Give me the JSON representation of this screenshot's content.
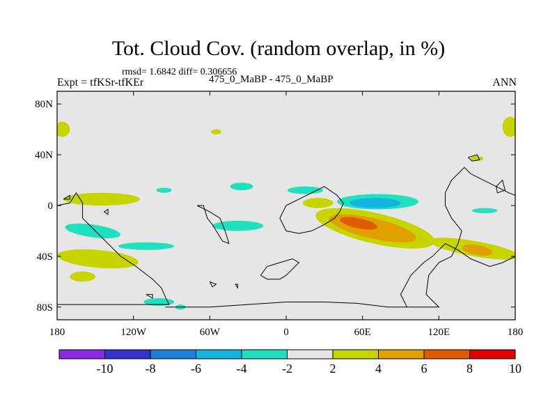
{
  "header": {
    "title": "Tot. Cloud Cov. (random overlap, in %)",
    "stats": "rmsd= 1.6842 diff= 0.306656",
    "expt": "Expt = tfKSr-tfKEr",
    "center_label": "475_0_MaBP - 475_0_MaBP",
    "season": "ANN"
  },
  "chart_data": {
    "type": "heatmap",
    "title": "Tot. Cloud Cov. (random overlap, in %)",
    "xlabel": "",
    "ylabel": "",
    "xlim": [
      -180,
      180
    ],
    "ylim": [
      -90,
      90
    ],
    "x_ticks": [
      {
        "value": -180,
        "label": "180"
      },
      {
        "value": -120,
        "label": "120W"
      },
      {
        "value": -60,
        "label": "60W"
      },
      {
        "value": 0,
        "label": "0"
      },
      {
        "value": 60,
        "label": "60E"
      },
      {
        "value": 120,
        "label": "120E"
      },
      {
        "value": 180,
        "label": "180"
      }
    ],
    "y_ticks": [
      {
        "value": 80,
        "label": "80N"
      },
      {
        "value": 40,
        "label": "40N"
      },
      {
        "value": 0,
        "label": "0"
      },
      {
        "value": -40,
        "label": "40S"
      },
      {
        "value": -80,
        "label": "80S"
      }
    ],
    "background_color": "#e6e6e6",
    "colorbar": {
      "colors": [
        "#8a2be2",
        "#3333cc",
        "#1e7fd8",
        "#12b4e0",
        "#20e0c0",
        "#e6e6e6",
        "#c8d400",
        "#e0a000",
        "#e05a00",
        "#e00000"
      ],
      "labels": [
        {
          "boundary": 1,
          "text": "-10"
        },
        {
          "boundary": 2,
          "text": "-8"
        },
        {
          "boundary": 3,
          "text": "-6"
        },
        {
          "boundary": 4,
          "text": "-4"
        },
        {
          "boundary": 5,
          "text": "-2"
        },
        {
          "boundary": 6,
          "text": "2"
        },
        {
          "boundary": 7,
          "text": "4"
        },
        {
          "boundary": 8,
          "text": "6"
        },
        {
          "boundary": 9,
          "text": "8"
        },
        {
          "boundary": 10,
          "text": "10"
        }
      ]
    },
    "regions": [
      {
        "name": "tropical-indian-ocean-max",
        "level": 4,
        "color": "#c8d400",
        "cx": 70,
        "cy": -18,
        "rx": 48,
        "ry": 12,
        "rot": 13
      },
      {
        "name": "tropical-indian-ocean-mid",
        "level": 6,
        "color": "#e0a000",
        "cx": 68,
        "cy": -18,
        "rx": 35,
        "ry": 8,
        "rot": 13
      },
      {
        "name": "tropical-indian-ocean-core",
        "level": 8,
        "color": "#e05a00",
        "cx": 57,
        "cy": -14,
        "rx": 15,
        "ry": 4,
        "rot": 12
      },
      {
        "name": "southwest-pacific-band",
        "level": 4,
        "color": "#c8d400",
        "cx": 148,
        "cy": -34,
        "rx": 36,
        "ry": 6,
        "rot": 10
      },
      {
        "name": "southwest-pacific-core",
        "level": 6,
        "color": "#e0a000",
        "cx": 150,
        "cy": -35,
        "rx": 12,
        "ry": 4,
        "rot": 10
      },
      {
        "name": "equatorial-ocean-negative",
        "level": -4,
        "color": "#20e0c0",
        "cx": 72,
        "cy": 3,
        "rx": 32,
        "ry": 6,
        "rot": 0
      },
      {
        "name": "equatorial-ocean-negative-core",
        "level": -6,
        "color": "#12b4e0",
        "cx": 70,
        "cy": 2,
        "rx": 20,
        "ry": 4,
        "rot": 0
      },
      {
        "name": "south-america-west-negative",
        "level": -4,
        "color": "#20e0c0",
        "cx": -152,
        "cy": -20,
        "rx": 22,
        "ry": 5,
        "rot": 8
      },
      {
        "name": "south-pacific-east-negative",
        "level": -4,
        "color": "#20e0c0",
        "cx": -38,
        "cy": -16,
        "rx": 20,
        "ry": 4,
        "rot": 0
      },
      {
        "name": "south-pacific-negative-2",
        "level": -4,
        "color": "#20e0c0",
        "cx": -110,
        "cy": -32,
        "rx": 22,
        "ry": 3,
        "rot": 0
      },
      {
        "name": "southern-ocean-negative-1",
        "level": -4,
        "color": "#20e0c0",
        "cx": -100,
        "cy": -76,
        "rx": 12,
        "ry": 3,
        "rot": 0
      },
      {
        "name": "southern-ocean-negative-2",
        "level": -4,
        "color": "#20e0c0",
        "cx": -83,
        "cy": -80,
        "rx": 4,
        "ry": 2,
        "rot": 0
      },
      {
        "name": "north-pacific-negative",
        "level": -4,
        "color": "#20e0c0",
        "cx": -35,
        "cy": 15,
        "rx": 9,
        "ry": 3,
        "rot": 0
      },
      {
        "name": "north-atlantic-negative",
        "level": -4,
        "color": "#20e0c0",
        "cx": 15,
        "cy": 12,
        "rx": 14,
        "ry": 3,
        "rot": 0
      },
      {
        "name": "north-east-asia-negative",
        "level": -4,
        "color": "#20e0c0",
        "cx": 156,
        "cy": -4,
        "rx": 10,
        "ry": 2,
        "rot": 0
      },
      {
        "name": "north-atlantic-positive",
        "level": 2,
        "color": "#c8d400",
        "cx": -145,
        "cy": 5,
        "rx": 30,
        "ry": 5,
        "rot": 0
      },
      {
        "name": "south-america-positive",
        "level": 2,
        "color": "#c8d400",
        "cx": -148,
        "cy": -42,
        "rx": 32,
        "ry": 7,
        "rot": 5
      },
      {
        "name": "west-africa-positive",
        "level": 2,
        "color": "#c8d400",
        "cx": 25,
        "cy": 2,
        "rx": 12,
        "ry": 4,
        "rot": 0
      },
      {
        "name": "arctic-positive-west",
        "level": 2,
        "color": "#c8d400",
        "cx": -176,
        "cy": 60,
        "rx": 6,
        "ry": 6,
        "rot": 0
      },
      {
        "name": "arctic-positive-east",
        "level": 2,
        "color": "#c8d400",
        "cx": 176,
        "cy": 62,
        "rx": 6,
        "ry": 8,
        "rot": 0
      },
      {
        "name": "southern-ocean-positive",
        "level": 2,
        "color": "#c8d400",
        "cx": -160,
        "cy": -56,
        "rx": 10,
        "ry": 4,
        "rot": 0
      },
      {
        "name": "north-polar-positive",
        "level": 2,
        "color": "#c8d400",
        "cx": -55,
        "cy": 58,
        "rx": 4,
        "ry": 2,
        "rot": 0
      },
      {
        "name": "midlat-asia-positive",
        "level": 2,
        "color": "#c8d400",
        "cx": 150,
        "cy": 37,
        "rx": 5,
        "ry": 2,
        "rot": 0
      },
      {
        "name": "pacific-line-negative",
        "level": -4,
        "color": "#20e0c0",
        "cx": -96,
        "cy": 12,
        "rx": 6,
        "ry": 2,
        "rot": 0
      }
    ],
    "land_outlines": [
      {
        "name": "continent-west-americas",
        "points": [
          [
            -180,
            0
          ],
          [
            -170,
            2
          ],
          [
            -165,
            10
          ],
          [
            -160,
            2
          ],
          [
            -160,
            -10
          ],
          [
            -150,
            -20
          ],
          [
            -145,
            -25
          ],
          [
            -140,
            -30
          ],
          [
            -130,
            -40
          ],
          [
            -118,
            -48
          ],
          [
            -105,
            -58
          ],
          [
            -98,
            -65
          ],
          [
            -95,
            -72
          ],
          [
            -92,
            -78
          ],
          [
            -180,
            -78
          ]
        ]
      },
      {
        "name": "continent-central-pacific",
        "points": [
          [
            -70,
            0
          ],
          [
            -65,
            0
          ],
          [
            -62,
            -10
          ],
          [
            -58,
            -15
          ],
          [
            -55,
            -20
          ],
          [
            -50,
            -28
          ],
          [
            -45,
            -30
          ],
          [
            -48,
            -20
          ],
          [
            -52,
            -10
          ],
          [
            -60,
            -5
          ],
          [
            -70,
            0
          ]
        ]
      },
      {
        "name": "continent-africa-east",
        "points": [
          [
            0,
            0
          ],
          [
            10,
            5
          ],
          [
            20,
            10
          ],
          [
            30,
            15
          ],
          [
            40,
            8
          ],
          [
            45,
            2
          ],
          [
            42,
            -5
          ],
          [
            38,
            -10
          ],
          [
            30,
            -15
          ],
          [
            20,
            -20
          ],
          [
            10,
            -22
          ],
          [
            0,
            -20
          ],
          [
            -5,
            -10
          ],
          [
            0,
            0
          ]
        ]
      },
      {
        "name": "continent-east-asia",
        "points": [
          [
            125,
            10
          ],
          [
            130,
            20
          ],
          [
            135,
            25
          ],
          [
            140,
            30
          ],
          [
            145,
            25
          ],
          [
            155,
            20
          ],
          [
            165,
            15
          ],
          [
            175,
            10
          ],
          [
            180,
            8
          ],
          [
            180,
            -40
          ],
          [
            170,
            -45
          ],
          [
            160,
            -48
          ],
          [
            145,
            -42
          ],
          [
            135,
            -35
          ],
          [
            125,
            -30
          ],
          [
            115,
            -40
          ],
          [
            108,
            -45
          ],
          [
            98,
            -55
          ],
          [
            90,
            -70
          ],
          [
            95,
            -80
          ],
          [
            120,
            -80
          ],
          [
            110,
            -70
          ],
          [
            112,
            -55
          ],
          [
            120,
            -45
          ],
          [
            130,
            -40
          ],
          [
            135,
            -30
          ],
          [
            138,
            -20
          ],
          [
            130,
            -10
          ],
          [
            125,
            0
          ],
          [
            125,
            10
          ]
        ]
      },
      {
        "name": "continent-antarctica-fragment",
        "points": [
          [
            -20,
            -55
          ],
          [
            -15,
            -58
          ],
          [
            -5,
            -58
          ],
          [
            0,
            -55
          ],
          [
            5,
            -50
          ],
          [
            10,
            -45
          ],
          [
            5,
            -42
          ],
          [
            -5,
            -45
          ],
          [
            -15,
            -48
          ],
          [
            -20,
            -55
          ]
        ]
      },
      {
        "name": "antarctic-coastline",
        "points": [
          [
            -95,
            -80
          ],
          [
            -60,
            -80
          ],
          [
            -30,
            -78
          ],
          [
            0,
            -76
          ],
          [
            30,
            -76
          ],
          [
            55,
            -77
          ],
          [
            80,
            -80
          ],
          [
            95,
            -80
          ]
        ]
      },
      {
        "name": "island-south-america",
        "points": [
          [
            -143,
            -5
          ],
          [
            -140,
            -3
          ],
          [
            -140,
            -7
          ],
          [
            -143,
            -5
          ]
        ]
      },
      {
        "name": "island-polynesia",
        "points": [
          [
            -110,
            -70
          ],
          [
            -105,
            -70
          ],
          [
            -105,
            -73
          ],
          [
            -110,
            -70
          ]
        ]
      },
      {
        "name": "island-southern-ocean",
        "points": [
          [
            -60,
            -60
          ],
          [
            -55,
            -62
          ],
          [
            -58,
            -64
          ],
          [
            -60,
            -60
          ]
        ]
      },
      {
        "name": "island-north-atlantic",
        "points": [
          [
            -40,
            -62
          ],
          [
            -38,
            -62
          ],
          [
            -38,
            -65
          ],
          [
            -40,
            -62
          ]
        ]
      },
      {
        "name": "island-indian-ocean",
        "points": [
          [
            -175,
            5
          ],
          [
            -170,
            5
          ],
          [
            -170,
            8
          ],
          [
            -175,
            5
          ]
        ]
      },
      {
        "name": "island-asia-east",
        "points": [
          [
            143,
            38
          ],
          [
            150,
            40
          ],
          [
            152,
            36
          ],
          [
            146,
            35
          ],
          [
            143,
            38
          ]
        ]
      },
      {
        "name": "island-central-east",
        "points": [
          [
            165,
            15
          ],
          [
            170,
            20
          ],
          [
            172,
            12
          ],
          [
            166,
            10
          ],
          [
            165,
            15
          ]
        ]
      }
    ]
  }
}
